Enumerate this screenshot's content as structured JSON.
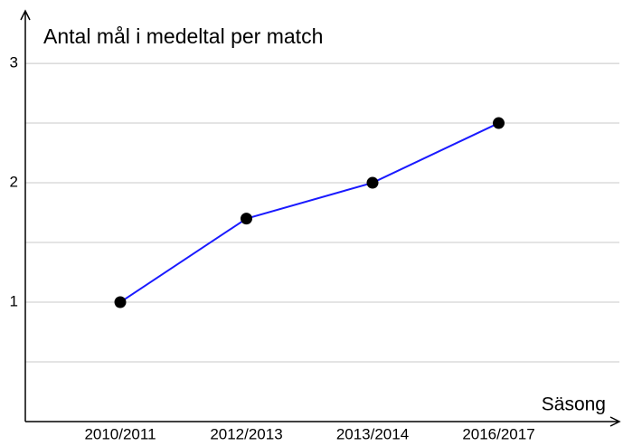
{
  "chart_data": {
    "type": "line",
    "title": "Antal mål i medeltal per match",
    "x_label": "Säsong",
    "categories": [
      "2010/2011",
      "2012/2013",
      "2013/2014",
      "2016/2017"
    ],
    "series": [
      {
        "name": "Antal mål i medeltal per match",
        "color": "#1a1aff",
        "marker_color": "#000000",
        "values": [
          1,
          1.7,
          2,
          2.5
        ]
      }
    ],
    "ylim": [
      0,
      3.44
    ],
    "yticks": [
      1,
      2,
      3
    ],
    "minor_yticks": [
      0.5,
      1.5,
      2.5
    ],
    "grid": true
  }
}
